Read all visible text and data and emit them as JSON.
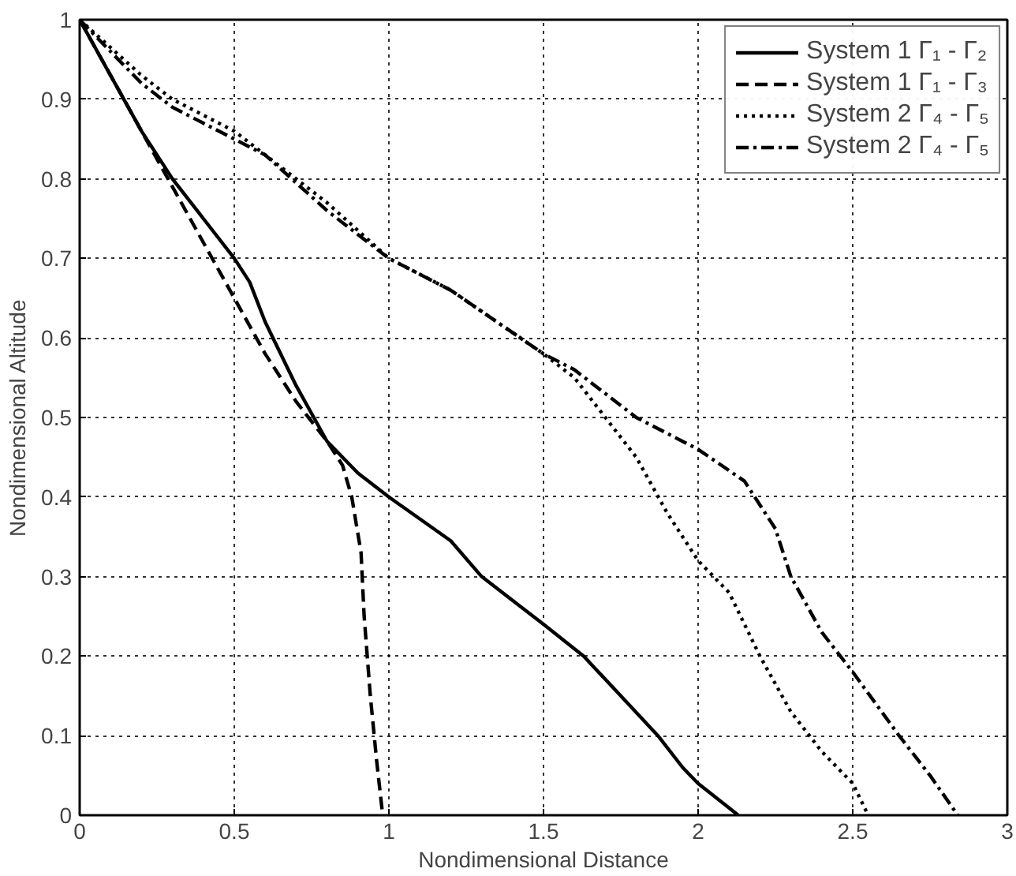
{
  "chart_data": {
    "type": "line",
    "xlabel": "Nondimensional Distance",
    "ylabel": "Nondimensional Altitude",
    "xlim": [
      0,
      3
    ],
    "ylim": [
      0,
      1
    ],
    "xticks": [
      0,
      0.5,
      1,
      1.5,
      2,
      2.5,
      3
    ],
    "yticks": [
      0,
      0.1,
      0.2,
      0.3,
      0.4,
      0.5,
      0.6,
      0.7,
      0.8,
      0.9,
      1
    ],
    "grid": true,
    "legend": "top right",
    "marker": "none",
    "series": [
      {
        "name": "System 1 Γ₁ - Γ₂",
        "color": "#000000",
        "line_style": "solid",
        "x": [
          0,
          0.1,
          0.2,
          0.3,
          0.4,
          0.5,
          0.55,
          0.6,
          0.7,
          0.8,
          0.9,
          1.0,
          1.2,
          1.3,
          1.5,
          1.63,
          1.75,
          1.87,
          1.95,
          2.0,
          2.13
        ],
        "values": [
          1,
          0.93,
          0.86,
          0.8,
          0.75,
          0.7,
          0.67,
          0.62,
          0.54,
          0.47,
          0.43,
          0.4,
          0.345,
          0.3,
          0.24,
          0.2,
          0.15,
          0.1,
          0.06,
          0.04,
          0
        ]
      },
      {
        "name": "System 1 Γ₁ - Γ₃",
        "color": "#000000",
        "line_style": "dashed",
        "x": [
          0,
          0.1,
          0.2,
          0.3,
          0.4,
          0.5,
          0.6,
          0.7,
          0.8,
          0.85,
          0.88,
          0.91,
          0.92,
          0.94,
          0.96,
          0.98
        ],
        "values": [
          1,
          0.93,
          0.86,
          0.79,
          0.72,
          0.65,
          0.58,
          0.52,
          0.47,
          0.44,
          0.4,
          0.33,
          0.25,
          0.15,
          0.07,
          0
        ]
      },
      {
        "name": "System 2 Γ₄ - Γ₅",
        "color": "#000000",
        "line_style": "dotted",
        "x": [
          0,
          0.2,
          0.3,
          0.5,
          0.6,
          0.8,
          1.0,
          1.2,
          1.5,
          1.6,
          1.7,
          1.8,
          1.9,
          2.0,
          2.1,
          2.2,
          2.3,
          2.4,
          2.5,
          2.55
        ],
        "values": [
          1,
          0.93,
          0.9,
          0.86,
          0.83,
          0.77,
          0.7,
          0.66,
          0.58,
          0.55,
          0.5,
          0.45,
          0.38,
          0.32,
          0.28,
          0.2,
          0.13,
          0.08,
          0.04,
          0
        ]
      },
      {
        "name": "System 2 Γ₄ - Γ₅",
        "color": "#000000",
        "line_style": "dashdot",
        "x": [
          0,
          0.2,
          0.3,
          0.5,
          0.6,
          0.8,
          1.0,
          1.2,
          1.5,
          1.6,
          1.8,
          2.0,
          2.15,
          2.25,
          2.3,
          2.4,
          2.5,
          2.65,
          2.75,
          2.84
        ],
        "values": [
          1,
          0.92,
          0.89,
          0.85,
          0.83,
          0.76,
          0.7,
          0.66,
          0.58,
          0.56,
          0.5,
          0.46,
          0.42,
          0.36,
          0.3,
          0.23,
          0.18,
          0.1,
          0.05,
          0
        ]
      }
    ]
  }
}
